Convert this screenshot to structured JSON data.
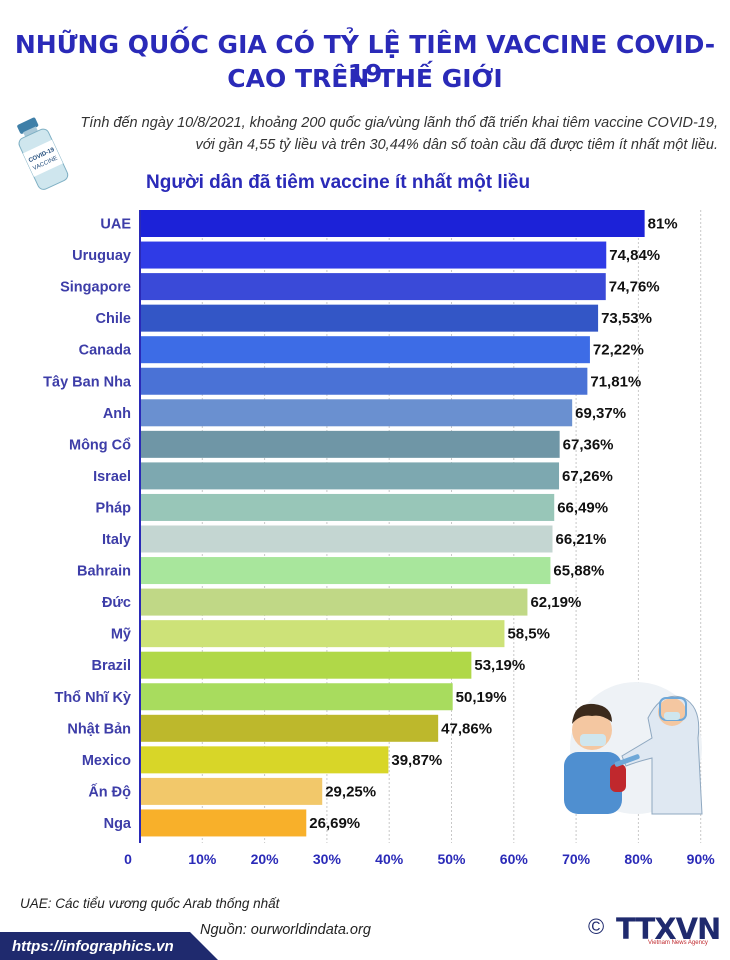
{
  "header": {
    "title_line1": "NHỮNG QUỐC GIA CÓ TỶ LỆ TIÊM VACCINE COVID-19",
    "title_line2": "CAO TRÊN THẾ GIỚI",
    "intro_line1": "Tính đến ngày 10/8/2021, khoảng 200 quốc gia/vùng lãnh thổ đã triển khai tiêm vaccine COVID-19,",
    "intro_line2": "với gần 4,55 tỷ liều và trên 30,44% dân số toàn cầu đã được tiêm ít nhất một liều."
  },
  "vial": {
    "label1": "COVID-19",
    "label2": "VACCINE"
  },
  "chart_data": {
    "type": "bar",
    "orientation": "horizontal",
    "title": "Người dân đã tiêm vaccine ít nhất một liều",
    "categories": [
      "UAE",
      "Uruguay",
      "Singapore",
      "Chile",
      "Canada",
      "Tây Ban Nha",
      "Anh",
      "Mông Cổ",
      "Israel",
      "Pháp",
      "Italy",
      "Bahrain",
      "Đức",
      "Mỹ",
      "Brazil",
      "Thổ Nhĩ Kỳ",
      "Nhật Bản",
      "Mexico",
      "Ấn Độ",
      "Nga"
    ],
    "values": [
      81,
      74.84,
      74.76,
      73.53,
      72.22,
      71.81,
      69.37,
      67.36,
      67.26,
      66.49,
      66.21,
      65.88,
      62.19,
      58.5,
      53.19,
      50.19,
      47.86,
      39.87,
      29.25,
      26.69
    ],
    "value_labels": [
      "81%",
      "74,84%",
      "74,76%",
      "73,53%",
      "72,22%",
      "71,81%",
      "69,37%",
      "67,36%",
      "67,26%",
      "66,49%",
      "66,21%",
      "65,88%",
      "62,19%",
      "58,5%",
      "53,19%",
      "50,19%",
      "47,86%",
      "39,87%",
      "29,25%",
      "26,69%"
    ],
    "bar_colors": [
      "#1c22d8",
      "#2f3be6",
      "#3a4ad8",
      "#3356c6",
      "#3d6ce6",
      "#4a72d6",
      "#6a90d0",
      "#6f96a6",
      "#7da8b0",
      "#98c6b8",
      "#c4d6d2",
      "#a8e69c",
      "#c0d886",
      "#cde278",
      "#b0d848",
      "#a8dc5e",
      "#bdb82c",
      "#d8d628",
      "#f2c86a",
      "#f8b02a"
    ],
    "xlim": [
      0,
      90
    ],
    "xticks": [
      0,
      10,
      20,
      30,
      40,
      50,
      60,
      70,
      80,
      90
    ],
    "xtick_labels": [
      "0",
      "10%",
      "20%",
      "30%",
      "40%",
      "50%",
      "60%",
      "70%",
      "80%",
      "90%"
    ],
    "grid": true,
    "axis_color": "#2a2ab8"
  },
  "footnote": "UAE: Các tiểu vương quốc Arab thống nhất",
  "source": "Nguồn: ourworldindata.org",
  "footer_url": "https://infographics.vn",
  "logo": {
    "copyright": "©",
    "text": "TTXVN",
    "subtitle": "Vietnam News Agency"
  },
  "colors": {
    "title": "#2a2ab8",
    "footer": "#1f2a6e"
  }
}
